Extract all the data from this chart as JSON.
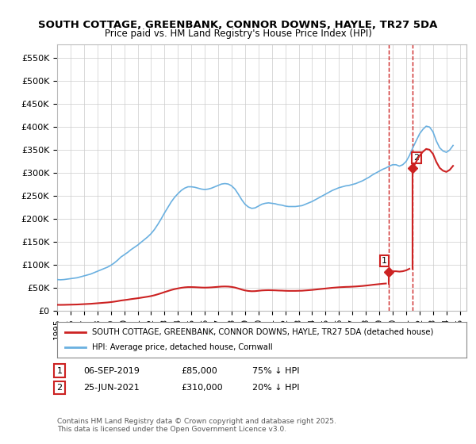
{
  "title_line1": "SOUTH COTTAGE, GREENBANK, CONNOR DOWNS, HAYLE, TR27 5DA",
  "title_line2": "Price paid vs. HM Land Registry's House Price Index (HPI)",
  "ylabel_ticks": [
    "£0",
    "£50K",
    "£100K",
    "£150K",
    "£200K",
    "£250K",
    "£300K",
    "£350K",
    "£400K",
    "£450K",
    "£500K",
    "£550K"
  ],
  "ylim": [
    0,
    580000
  ],
  "xlim_start": 1995.0,
  "xlim_end": 2025.5,
  "hpi_color": "#6ab0e0",
  "property_color": "#cc2222",
  "dashed_line_color": "#cc2222",
  "background_color": "#ffffff",
  "grid_color": "#cccccc",
  "purchase1_date": 2019.68,
  "purchase1_price": 85000,
  "purchase2_date": 2021.48,
  "purchase2_price": 310000,
  "legend_property": "SOUTH COTTAGE, GREENBANK, CONNOR DOWNS, HAYLE, TR27 5DA (detached house)",
  "legend_hpi": "HPI: Average price, detached house, Cornwall",
  "table_row1": "1     06-SEP-2019          £85,000        75% ↓ HPI",
  "table_row2": "2     25-JUN-2021          £310,000      20% ↓ HPI",
  "footnote": "Contains HM Land Registry data © Crown copyright and database right 2025.\nThis data is licensed under the Open Government Licence v3.0.",
  "hpi_data_x": [
    1995.0,
    1995.25,
    1995.5,
    1995.75,
    1996.0,
    1996.25,
    1996.5,
    1996.75,
    1997.0,
    1997.25,
    1997.5,
    1997.75,
    1998.0,
    1998.25,
    1998.5,
    1998.75,
    1999.0,
    1999.25,
    1999.5,
    1999.75,
    2000.0,
    2000.25,
    2000.5,
    2000.75,
    2001.0,
    2001.25,
    2001.5,
    2001.75,
    2002.0,
    2002.25,
    2002.5,
    2002.75,
    2003.0,
    2003.25,
    2003.5,
    2003.75,
    2004.0,
    2004.25,
    2004.5,
    2004.75,
    2005.0,
    2005.25,
    2005.5,
    2005.75,
    2006.0,
    2006.25,
    2006.5,
    2006.75,
    2007.0,
    2007.25,
    2007.5,
    2007.75,
    2008.0,
    2008.25,
    2008.5,
    2008.75,
    2009.0,
    2009.25,
    2009.5,
    2009.75,
    2010.0,
    2010.25,
    2010.5,
    2010.75,
    2011.0,
    2011.25,
    2011.5,
    2011.75,
    2012.0,
    2012.25,
    2012.5,
    2012.75,
    2013.0,
    2013.25,
    2013.5,
    2013.75,
    2014.0,
    2014.25,
    2014.5,
    2014.75,
    2015.0,
    2015.25,
    2015.5,
    2015.75,
    2016.0,
    2016.25,
    2016.5,
    2016.75,
    2017.0,
    2017.25,
    2017.5,
    2017.75,
    2018.0,
    2018.25,
    2018.5,
    2018.75,
    2019.0,
    2019.25,
    2019.5,
    2019.75,
    2020.0,
    2020.25,
    2020.5,
    2020.75,
    2021.0,
    2021.25,
    2021.5,
    2021.75,
    2022.0,
    2022.25,
    2022.5,
    2022.75,
    2023.0,
    2023.25,
    2023.5,
    2023.75,
    2024.0,
    2024.25,
    2024.5
  ],
  "hpi_data_y": [
    68000,
    67500,
    68000,
    69000,
    70000,
    71000,
    72000,
    74000,
    76000,
    78000,
    80000,
    83000,
    86000,
    89000,
    92000,
    95000,
    99000,
    104000,
    110000,
    117000,
    122000,
    127000,
    133000,
    138000,
    143000,
    149000,
    155000,
    161000,
    168000,
    177000,
    188000,
    200000,
    213000,
    225000,
    237000,
    247000,
    255000,
    262000,
    267000,
    270000,
    270000,
    269000,
    267000,
    265000,
    264000,
    265000,
    267000,
    270000,
    273000,
    276000,
    277000,
    276000,
    272000,
    265000,
    254000,
    242000,
    232000,
    226000,
    223000,
    224000,
    228000,
    232000,
    234000,
    235000,
    234000,
    233000,
    231000,
    230000,
    228000,
    227000,
    227000,
    227000,
    228000,
    229000,
    232000,
    235000,
    238000,
    242000,
    246000,
    250000,
    254000,
    258000,
    262000,
    265000,
    268000,
    270000,
    272000,
    273000,
    275000,
    277000,
    280000,
    283000,
    287000,
    291000,
    296000,
    300000,
    304000,
    308000,
    311000,
    315000,
    318000,
    318000,
    315000,
    318000,
    325000,
    338000,
    355000,
    370000,
    385000,
    395000,
    402000,
    400000,
    390000,
    370000,
    355000,
    348000,
    345000,
    350000,
    360000
  ],
  "property_data_x": [
    2019.68,
    2021.48
  ],
  "property_data_y": [
    85000,
    310000
  ]
}
